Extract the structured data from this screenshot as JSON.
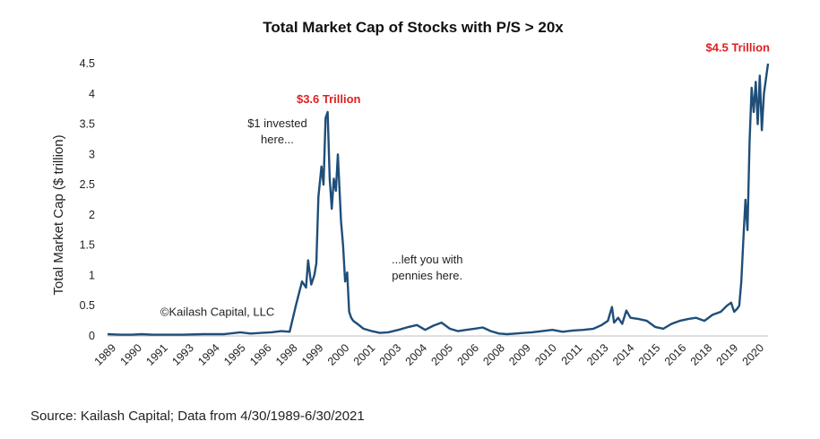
{
  "chart_data": {
    "type": "line",
    "title": "Total Market Cap of Stocks with P/S > 20x",
    "ylabel": "Total Market Cap ($ trillion)",
    "xlabel": "",
    "ylim": [
      0,
      4.5
    ],
    "yticks": [
      "0",
      "0.5",
      "1",
      "1.5",
      "2",
      "2.5",
      "3",
      "3.5",
      "4",
      "4.5"
    ],
    "xticks": [
      "1989",
      "1990",
      "1991",
      "1993",
      "1994",
      "1995",
      "1996",
      "1998",
      "1999",
      "2000",
      "2001",
      "2003",
      "2004",
      "2005",
      "2006",
      "2008",
      "2009",
      "2010",
      "2011",
      "2013",
      "2014",
      "2015",
      "2016",
      "2018",
      "2019",
      "2020"
    ],
    "xrange": [
      1989.33,
      2021.5
    ],
    "line_color": "#1f4e79",
    "series": [
      {
        "name": "Total Market Cap",
        "x": [
          1989.33,
          1990.0,
          1990.5,
          1991.0,
          1991.5,
          1992.0,
          1993.0,
          1994.0,
          1995.0,
          1995.8,
          1996.3,
          1996.8,
          1997.3,
          1997.8,
          1998.2,
          1998.5,
          1998.8,
          1999.0,
          1999.1,
          1999.25,
          1999.4,
          1999.5,
          1999.6,
          1999.75,
          1999.85,
          1999.95,
          2000.05,
          2000.15,
          2000.25,
          2000.35,
          2000.45,
          2000.55,
          2000.7,
          2000.8,
          2000.9,
          2001.0,
          2001.1,
          2001.2,
          2001.3,
          2001.5,
          2001.8,
          2002.2,
          2002.6,
          2003.0,
          2003.5,
          2004.0,
          2004.4,
          2004.8,
          2005.2,
          2005.6,
          2006.0,
          2006.4,
          2006.8,
          2007.2,
          2007.6,
          2008.0,
          2008.4,
          2008.8,
          2009.2,
          2009.6,
          2010.0,
          2010.5,
          2011.0,
          2011.5,
          2012.0,
          2012.5,
          2013.0,
          2013.4,
          2013.7,
          2013.9,
          2014.0,
          2014.2,
          2014.4,
          2014.6,
          2014.8,
          2015.2,
          2015.6,
          2016.0,
          2016.4,
          2016.8,
          2017.2,
          2017.6,
          2018.0,
          2018.4,
          2018.8,
          2019.2,
          2019.5,
          2019.7,
          2019.85,
          2020.0,
          2020.1,
          2020.2,
          2020.3,
          2020.4,
          2020.5,
          2020.6,
          2020.7,
          2020.8,
          2020.9,
          2021.0,
          2021.1,
          2021.2,
          2021.3,
          2021.5
        ],
        "y": [
          0.03,
          0.02,
          0.02,
          0.03,
          0.02,
          0.02,
          0.02,
          0.03,
          0.03,
          0.06,
          0.04,
          0.05,
          0.06,
          0.08,
          0.07,
          0.5,
          0.9,
          0.8,
          1.25,
          0.85,
          1.0,
          1.2,
          2.3,
          2.8,
          2.5,
          3.6,
          3.7,
          2.6,
          2.1,
          2.6,
          2.4,
          3.0,
          1.9,
          1.5,
          0.9,
          1.05,
          0.4,
          0.3,
          0.25,
          0.2,
          0.12,
          0.08,
          0.05,
          0.06,
          0.1,
          0.15,
          0.18,
          0.1,
          0.17,
          0.22,
          0.12,
          0.08,
          0.1,
          0.12,
          0.14,
          0.08,
          0.04,
          0.03,
          0.04,
          0.05,
          0.06,
          0.08,
          0.1,
          0.07,
          0.09,
          0.1,
          0.12,
          0.18,
          0.25,
          0.48,
          0.22,
          0.3,
          0.2,
          0.42,
          0.3,
          0.28,
          0.25,
          0.15,
          0.12,
          0.2,
          0.25,
          0.28,
          0.3,
          0.25,
          0.35,
          0.4,
          0.5,
          0.55,
          0.4,
          0.45,
          0.5,
          0.9,
          1.6,
          2.25,
          1.75,
          3.2,
          4.1,
          3.7,
          4.2,
          3.5,
          4.3,
          3.4,
          4.0,
          4.5
        ]
      }
    ],
    "annotations": [
      {
        "text": "$3.6 Trillion",
        "x": 2000.1,
        "y": 3.85,
        "color": "#e02020",
        "bold": true
      },
      {
        "text": "$4.5 Trillion",
        "x": 2021.0,
        "y": 4.7,
        "color": "#e02020",
        "bold": true
      },
      {
        "lines": [
          "$1 invested",
          "here..."
        ],
        "x": 1997.6,
        "y": 3.45
      },
      {
        "lines": [
          "...left you with",
          "pennies here."
        ],
        "x": 2004.9,
        "y": 1.2
      },
      {
        "text": "©Kailash Capital, LLC",
        "x": 1991.9,
        "y": 0.33
      }
    ]
  },
  "source_text": "Source: Kailash Capital; Data from 4/30/1989-6/30/2021"
}
